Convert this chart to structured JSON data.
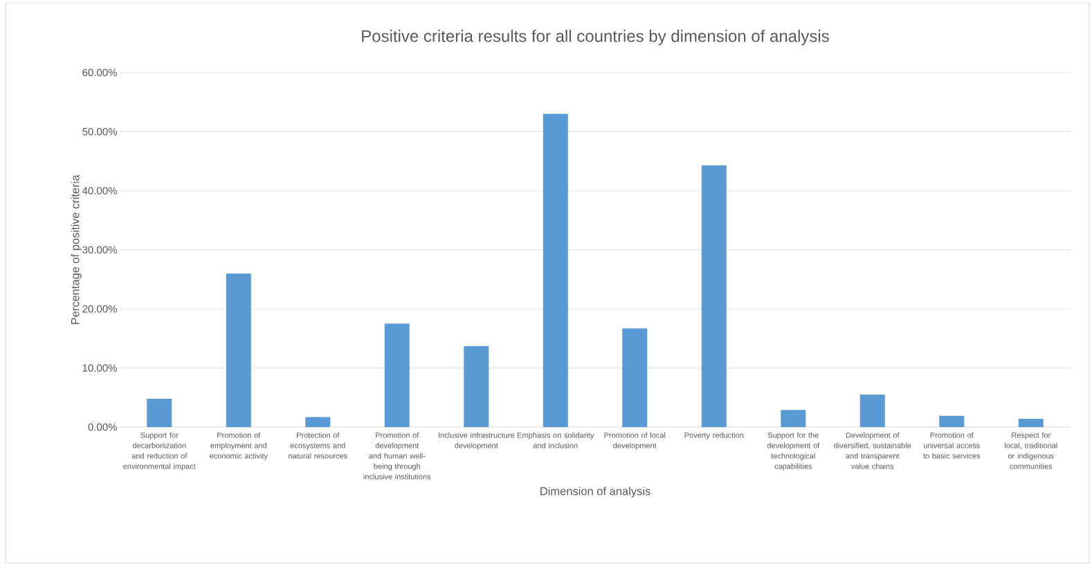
{
  "chart_data": {
    "type": "bar",
    "title": "Positive criteria results for all countries by dimension of analysis",
    "xlabel": "Dimension of analysis",
    "ylabel": "Percentage of positive criteria",
    "categories": [
      "Support for decarbonization and reduction of environmental impact",
      "Promotion of employment and economic activity",
      "Protection of ecosystems and natural resources",
      "Promotion of development and human well-being through inclusive institutions",
      "Inclusive infrastructure development",
      "Emphasis on solidarity and inclusion",
      "Promotion of local development",
      "Poverty reduction",
      "Support for the development of technological capabilities",
      "Development of diversified, sustainable and transparent value chains",
      "Promotion of universal access to basic services",
      "Respect for local, traditional or indigenous communities"
    ],
    "values": [
      4.8,
      26.0,
      1.7,
      17.5,
      13.7,
      53.0,
      16.7,
      44.3,
      2.9,
      5.5,
      1.9,
      1.4
    ],
    "color": "#5b9bd5",
    "ylim": [
      0,
      60
    ],
    "yticks": [
      {
        "value": 0,
        "label": "0.00%"
      },
      {
        "value": 10,
        "label": "10.00%"
      },
      {
        "value": 20,
        "label": "20.00%"
      },
      {
        "value": 30,
        "label": "30.00%"
      },
      {
        "value": 40,
        "label": "40.00%"
      },
      {
        "value": 50,
        "label": "50.00%"
      },
      {
        "value": 60,
        "label": "60.00%"
      }
    ],
    "grid": "y"
  }
}
